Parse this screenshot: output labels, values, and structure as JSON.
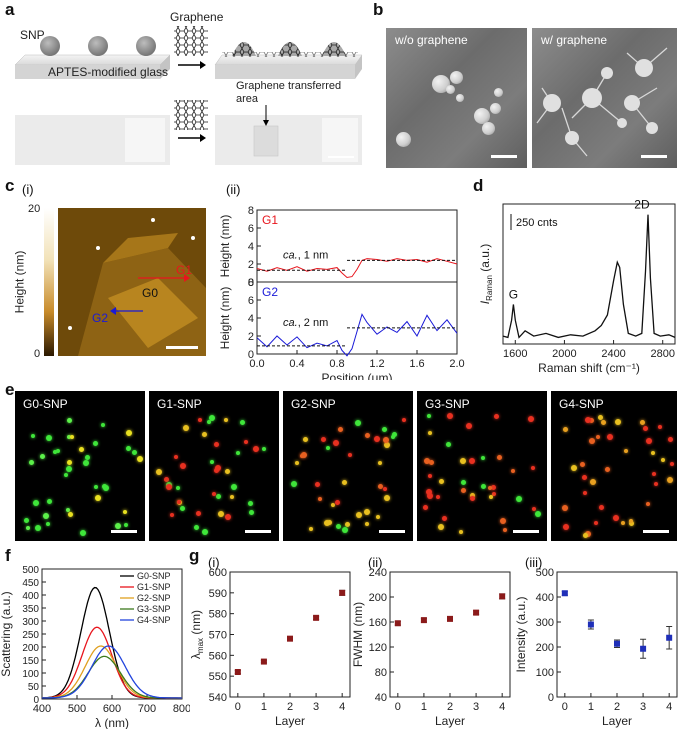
{
  "labels": {
    "a": "a",
    "b": "b",
    "c": "c",
    "d": "d",
    "e": "e",
    "f": "f",
    "g": "g",
    "c_i": "(i)",
    "c_ii": "(ii)",
    "g_i": "(i)",
    "g_ii": "(ii)",
    "g_iii": "(iii)"
  },
  "panel_a": {
    "snp": "SNP",
    "graphene_top": "Graphene",
    "substrate": "APTES-modified glass",
    "transferred": "Graphene transferred area"
  },
  "panel_b": {
    "left": "w/o graphene",
    "right": "w/ graphene"
  },
  "panel_c": {
    "colorbar_label": "Height (nm)",
    "colorbar_max": "20",
    "colorbar_min": "0",
    "g1": "G1",
    "g0": "G0",
    "g2": "G2"
  },
  "panel_e": {
    "captions": [
      "G0-SNP",
      "G1-SNP",
      "G2-SNP",
      "G3-SNP",
      "G4-SNP"
    ]
  },
  "colors": {
    "red": "#e8151d",
    "blue": "#1a1ad8",
    "maroon": "#8b1a1a",
    "navy": "#1f2fb8"
  },
  "chart_data": [
    {
      "id": "c_ii",
      "type": "line",
      "title": "",
      "xlabel": "Position (μm)",
      "ylabel": "Height (nm)",
      "xlim": [
        0.0,
        2.0
      ],
      "xticks": [
        "0.0",
        "0.4",
        "0.8",
        "1.2",
        "1.6",
        "2.0"
      ],
      "panels": [
        {
          "name": "G1",
          "ylim": [
            0,
            8
          ],
          "yticks": [
            "0",
            "2",
            "4",
            "6",
            "8"
          ],
          "annotation": "ca., 1 nm",
          "annotation_italic": "ca.",
          "annotation_rest": ", 1 nm",
          "levels": [
            1.3,
            2.4
          ],
          "x": [
            0.0,
            0.1,
            0.2,
            0.3,
            0.4,
            0.5,
            0.6,
            0.7,
            0.8,
            0.85,
            0.9,
            0.95,
            1.0,
            1.05,
            1.1,
            1.2,
            1.3,
            1.4,
            1.5,
            1.6,
            1.7,
            1.8,
            1.9,
            2.0
          ],
          "y": [
            1.5,
            1.2,
            1.6,
            1.3,
            1.7,
            1.2,
            1.5,
            1.4,
            1.6,
            1.0,
            0.5,
            0.6,
            1.4,
            2.4,
            2.6,
            2.5,
            2.3,
            2.6,
            2.4,
            2.5,
            2.2,
            2.6,
            2.3,
            2.0
          ]
        },
        {
          "name": "G2",
          "ylim": [
            0,
            8
          ],
          "yticks": [
            "0",
            "2",
            "4",
            "6",
            "8"
          ],
          "annotation": "ca., 2 nm",
          "annotation_italic": "ca.",
          "annotation_rest": ", 2 nm",
          "levels": [
            0.9,
            2.9
          ],
          "x": [
            0.0,
            0.1,
            0.2,
            0.3,
            0.4,
            0.5,
            0.6,
            0.7,
            0.8,
            0.85,
            0.9,
            0.95,
            1.0,
            1.05,
            1.1,
            1.2,
            1.3,
            1.4,
            1.5,
            1.6,
            1.7,
            1.8,
            1.9,
            2.0
          ],
          "y": [
            1.8,
            0.8,
            2.0,
            1.0,
            1.9,
            0.7,
            1.2,
            0.9,
            1.5,
            0.4,
            -0.2,
            0.6,
            2.5,
            4.4,
            3.5,
            2.2,
            3.0,
            2.4,
            3.6,
            2.0,
            4.3,
            2.6,
            3.8,
            2.3
          ]
        }
      ]
    },
    {
      "id": "d",
      "type": "line",
      "title": "",
      "xlabel": "Raman shift (cm⁻¹)",
      "ylabel": "I_Raman (a.u.)",
      "ylabel_main": "I",
      "ylabel_sub": "Raman",
      "ylabel_rest": " (a.u.)",
      "xlim": [
        1500,
        2900
      ],
      "xticks": [
        "1600",
        "2000",
        "2400",
        "2800"
      ],
      "scalebar": "250 cnts",
      "peaks": [
        {
          "label": "G",
          "x": 1585
        },
        {
          "label": "2D",
          "x": 2680
        }
      ],
      "x": [
        1500,
        1540,
        1570,
        1585,
        1600,
        1630,
        1680,
        1750,
        1850,
        1950,
        2050,
        2150,
        2250,
        2300,
        2350,
        2400,
        2430,
        2450,
        2480,
        2520,
        2580,
        2630,
        2660,
        2680,
        2700,
        2730,
        2780,
        2850,
        2900
      ],
      "y": [
        0.06,
        0.05,
        0.18,
        0.3,
        0.18,
        0.05,
        0.1,
        0.06,
        0.08,
        0.05,
        0.07,
        0.06,
        0.1,
        0.14,
        0.22,
        0.48,
        0.62,
        0.58,
        0.3,
        0.08,
        0.06,
        0.08,
        0.55,
        0.98,
        0.5,
        0.08,
        0.06,
        0.07,
        0.05
      ]
    },
    {
      "id": "f",
      "type": "line",
      "title": "",
      "xlabel": "λ (nm)",
      "ylabel": "Scattering (a.u.)",
      "xlim": [
        400,
        800
      ],
      "ylim": [
        0,
        500
      ],
      "xticks": [
        "400",
        "500",
        "600",
        "700",
        "800"
      ],
      "yticks": [
        "0",
        "50",
        "100",
        "150",
        "200",
        "250",
        "300",
        "350",
        "400",
        "450",
        "500"
      ],
      "series": [
        {
          "name": "G0-SNP",
          "color": "#000000",
          "peak_x": 552,
          "peak_y": 425,
          "width": 95
        },
        {
          "name": "G1-SNP",
          "color": "#e8151d",
          "peak_x": 557,
          "peak_y": 272,
          "width": 100
        },
        {
          "name": "G2-SNP",
          "color": "#e0a020",
          "peak_x": 568,
          "peak_y": 200,
          "width": 105
        },
        {
          "name": "G3-SNP",
          "color": "#3c7a1c",
          "peak_x": 578,
          "peak_y": 160,
          "width": 108
        },
        {
          "name": "G4-SNP",
          "color": "#2244dd",
          "peak_x": 590,
          "peak_y": 200,
          "width": 112
        }
      ]
    },
    {
      "id": "g_i",
      "type": "scatter",
      "title": "",
      "xlabel": "Layer",
      "ylabel": "λmax (nm)",
      "ylabel_main": "λ",
      "ylabel_sub": "max",
      "ylabel_rest": " (nm)",
      "xlim": [
        -0.3,
        4.3
      ],
      "ylim": [
        540,
        600
      ],
      "xticks": [
        "0",
        "1",
        "2",
        "3",
        "4"
      ],
      "yticks": [
        "540",
        "550",
        "560",
        "570",
        "580",
        "590",
        "600"
      ],
      "x": [
        0,
        1,
        2,
        3,
        4
      ],
      "y": [
        552,
        557,
        568,
        578,
        590
      ],
      "err": [
        0.7,
        0.6,
        0.8,
        0.8,
        1.2
      ],
      "color": "#8b1a1a"
    },
    {
      "id": "g_ii",
      "type": "scatter",
      "title": "",
      "xlabel": "Layer",
      "ylabel": "FWHM (nm)",
      "xlim": [
        -0.3,
        4.3
      ],
      "ylim": [
        40,
        240
      ],
      "xticks": [
        "0",
        "1",
        "2",
        "3",
        "4"
      ],
      "yticks": [
        "40",
        "80",
        "120",
        "160",
        "200",
        "240"
      ],
      "x": [
        0,
        1,
        2,
        3,
        4
      ],
      "y": [
        158,
        163,
        165,
        175,
        201
      ],
      "err": [
        3,
        3,
        3,
        3,
        4
      ],
      "color": "#8b1a1a"
    },
    {
      "id": "g_iii",
      "type": "scatter",
      "title": "",
      "xlabel": "Layer",
      "ylabel": "Intensity (a.u.)",
      "xlim": [
        -0.3,
        4.3
      ],
      "ylim": [
        0,
        500
      ],
      "xticks": [
        "0",
        "1",
        "2",
        "3",
        "4"
      ],
      "yticks": [
        "0",
        "100",
        "200",
        "300",
        "400",
        "500"
      ],
      "x": [
        0,
        1,
        2,
        3,
        4
      ],
      "y": [
        415,
        290,
        213,
        193,
        237
      ],
      "err": [
        8,
        18,
        15,
        38,
        45
      ],
      "color": "#1f2fb8"
    }
  ]
}
